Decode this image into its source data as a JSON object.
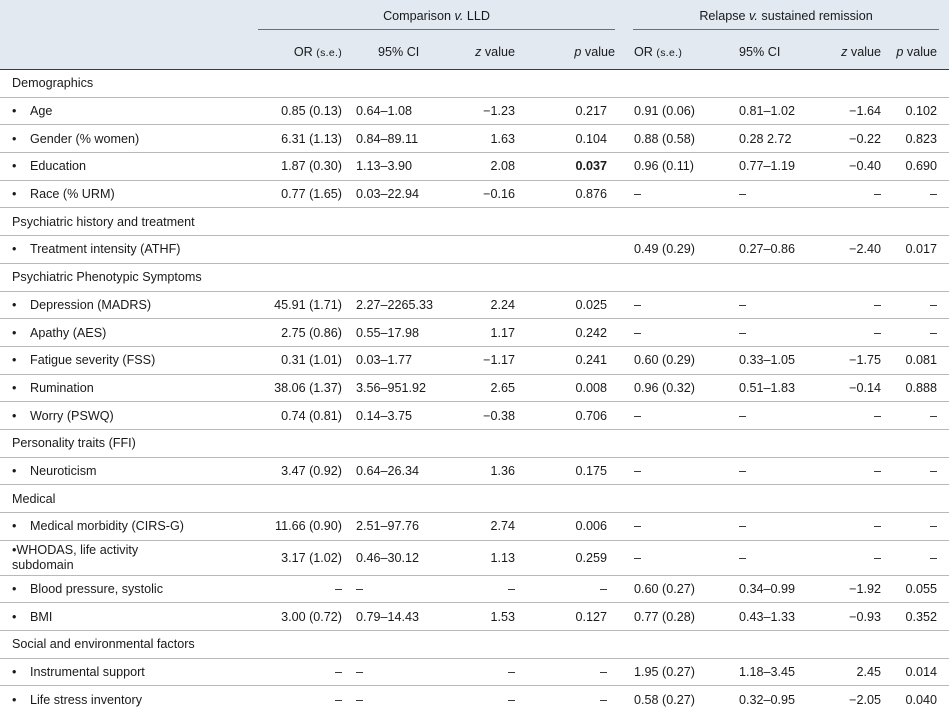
{
  "header": {
    "group_left": {
      "pre": "Comparison ",
      "italic": "v.",
      "post": " LLD"
    },
    "group_right": {
      "pre": "Relapse ",
      "italic": "v.",
      "post": " sustained remission"
    },
    "cols": {
      "or": "OR",
      "se": "(s.e.)",
      "ci": "95% CI",
      "z_italic": "z",
      "z_rest": " value",
      "p_italic": "p",
      "p_rest": " value"
    }
  },
  "bullet": "•",
  "sections": [
    {
      "title": "Demographics",
      "rows": [
        {
          "label": "Age",
          "l": [
            "0.85 (0.13)",
            "0.64–1.08",
            "−1.23",
            "0.217"
          ],
          "r": [
            "0.91 (0.06)",
            "0.81–1.02",
            "−1.64",
            "0.102"
          ]
        },
        {
          "label": "Gender (% women)",
          "l": [
            "6.31 (1.13)",
            "0.84–89.11",
            "1.63",
            "0.104"
          ],
          "r": [
            "0.88 (0.58)",
            "0.28 2.72",
            "−0.22",
            "0.823"
          ]
        },
        {
          "label": "Education",
          "l": [
            "1.87 (0.30)",
            "1.13–3.90",
            "2.08",
            "0.037"
          ],
          "r": [
            "0.96 (0.11)",
            "0.77–1.19",
            "−0.40",
            "0.690"
          ]
        },
        {
          "label": "Race (% URM)",
          "l": [
            "0.77 (1.65)",
            "0.03–22.94",
            "−0.16",
            "0.876"
          ],
          "r": [
            "–",
            "–",
            "–",
            "–"
          ]
        }
      ]
    },
    {
      "title": "Psychiatric history and treatment",
      "rows": [
        {
          "label": "Treatment intensity (ATHF)",
          "l": [
            "",
            "",
            "",
            ""
          ],
          "r": [
            "0.49 (0.29)",
            "0.27–0.86",
            "−2.40",
            "0.017"
          ]
        }
      ]
    },
    {
      "title": "Psychiatric Phenotypic Symptoms",
      "rows": [
        {
          "label": "Depression (MADRS)",
          "l": [
            "45.91 (1.71)",
            "2.27–2265.33",
            "2.24",
            "0.025"
          ],
          "r": [
            "–",
            "–",
            "–",
            "–"
          ]
        },
        {
          "label": "Apathy (AES)",
          "l": [
            "2.75 (0.86)",
            "0.55–17.98",
            "1.17",
            "0.242"
          ],
          "r": [
            "–",
            "–",
            "–",
            "–"
          ]
        },
        {
          "label": "Fatigue severity (FSS)",
          "l": [
            "0.31 (1.01)",
            "0.03–1.77",
            "−1.17",
            "0.241"
          ],
          "r": [
            "0.60 (0.29)",
            "0.33–1.05",
            "−1.75",
            "0.081"
          ]
        },
        {
          "label": "Rumination",
          "l": [
            "38.06 (1.37)",
            "3.56–951.92",
            "2.65",
            "0.008"
          ],
          "r": [
            "0.96 (0.32)",
            "0.51–1.83",
            "−0.14",
            "0.888"
          ]
        },
        {
          "label": "Worry (PSWQ)",
          "l": [
            "0.74 (0.81)",
            "0.14–3.75",
            "−0.38",
            "0.706"
          ],
          "r": [
            "–",
            "–",
            "–",
            "–"
          ]
        }
      ]
    },
    {
      "title": "Personality traits (FFI)",
      "rows": [
        {
          "label": "Neuroticism",
          "l": [
            "3.47 (0.92)",
            "0.64–26.34",
            "1.36",
            "0.175"
          ],
          "r": [
            "–",
            "–",
            "–",
            "–"
          ]
        }
      ]
    },
    {
      "title": "Medical",
      "rows": [
        {
          "label": "Medical morbidity (CIRS-G)",
          "l": [
            "11.66 (0.90)",
            "2.51–97.76",
            "2.74",
            "0.006"
          ],
          "r": [
            "–",
            "–",
            "–",
            "–"
          ]
        },
        {
          "label": "WHODAS, life activity",
          "label2": "subdomain",
          "l": [
            "3.17 (1.02)",
            "0.46–30.12",
            "1.13",
            "0.259"
          ],
          "r": [
            "–",
            "–",
            "–",
            "–"
          ]
        },
        {
          "label": "Blood pressure, systolic",
          "l": [
            "–",
            "–",
            "–",
            "–"
          ],
          "r": [
            "0.60 (0.27)",
            "0.34–0.99",
            "−1.92",
            "0.055"
          ]
        },
        {
          "label": "BMI",
          "l": [
            "3.00 (0.72)",
            "0.79–14.43",
            "1.53",
            "0.127"
          ],
          "r": [
            "0.77 (0.28)",
            "0.43–1.33",
            "−0.93",
            "0.352"
          ]
        }
      ]
    },
    {
      "title": "Social and environmental factors",
      "rows": [
        {
          "label": "Instrumental support",
          "l": [
            "–",
            "–",
            "–",
            "–"
          ],
          "r": [
            "1.95 (0.27)",
            "1.18–3.45",
            "2.45",
            "0.014"
          ]
        },
        {
          "label": "Life stress inventory",
          "l": [
            "–",
            "–",
            "–",
            "–"
          ],
          "r": [
            "0.58 (0.27)",
            "0.32–0.95",
            "−2.05",
            "0.040"
          ]
        }
      ]
    }
  ]
}
